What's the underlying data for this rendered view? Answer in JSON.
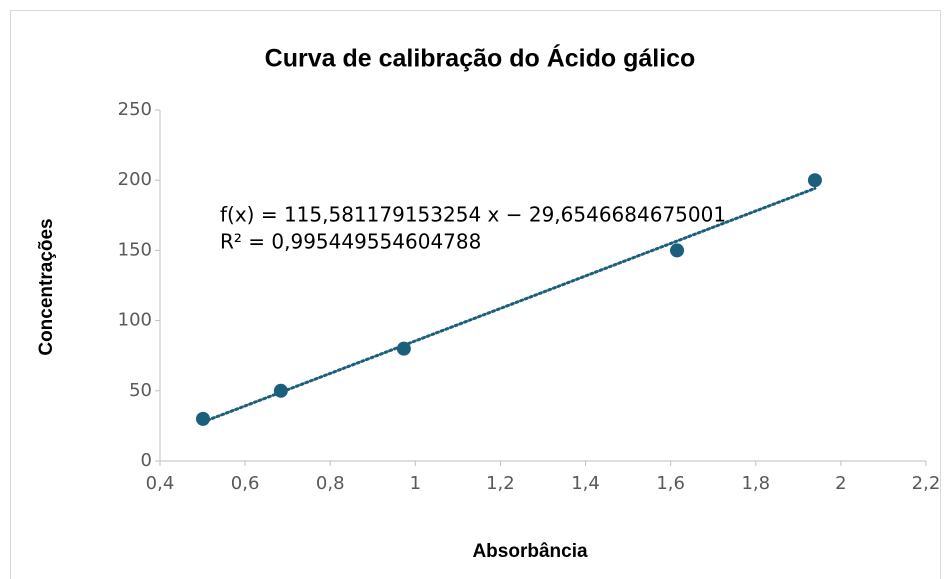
{
  "chart_data": {
    "type": "scatter",
    "title": "Curva de calibração do Ácido gálico",
    "xlabel": "Absorbância",
    "ylabel": "Concentrações",
    "x": [
      0.501,
      0.684,
      0.973,
      1.615,
      1.939
    ],
    "values": [
      30,
      50,
      80,
      150,
      200
    ],
    "color": "#1c5f7d",
    "trendline": "linear",
    "annotations": [
      "f(x) = 115,581179153254 x − 29,6546684675001",
      "R² = 0,995449554604788"
    ],
    "xlim": [
      0.4,
      2.2
    ],
    "xticks": [
      {
        "value": 0.4,
        "label": "0,4"
      },
      {
        "value": 0.6,
        "label": "0,6"
      },
      {
        "value": 0.8,
        "label": "0,8"
      },
      1,
      {
        "value": 1.2,
        "label": "1,2"
      },
      {
        "value": 1.4,
        "label": "1,4"
      },
      {
        "value": 1.6,
        "label": "1,6"
      },
      {
        "value": 1.8,
        "label": "1,8"
      },
      2,
      {
        "value": 2.2,
        "label": "2,2"
      }
    ],
    "ylim": [
      0,
      250
    ],
    "yticks": [
      0,
      50,
      100,
      150,
      200,
      250
    ],
    "grid": false
  }
}
